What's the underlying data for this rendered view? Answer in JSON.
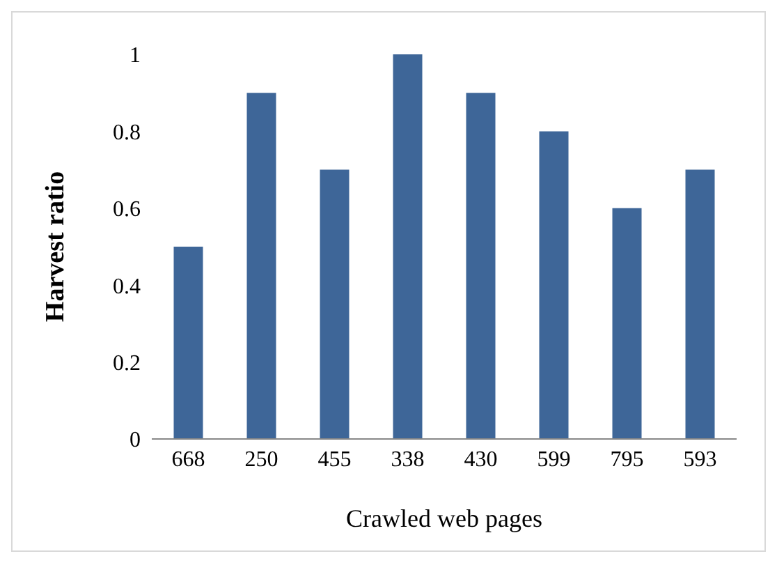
{
  "chart_data": {
    "type": "bar",
    "xlabel": "Crawled web pages",
    "ylabel": "Harvest ratio",
    "categories": [
      "668",
      "250",
      "455",
      "338",
      "430",
      "599",
      "795",
      "593"
    ],
    "values": [
      0.5,
      0.9,
      0.7,
      1,
      0.9,
      0.8,
      0.6,
      0.7
    ],
    "color": "#3e6698",
    "ylim": [
      0,
      1
    ],
    "yticks": [
      0,
      0.2,
      0.4,
      0.6,
      0.8,
      1
    ],
    "grid": false,
    "legend": false
  }
}
